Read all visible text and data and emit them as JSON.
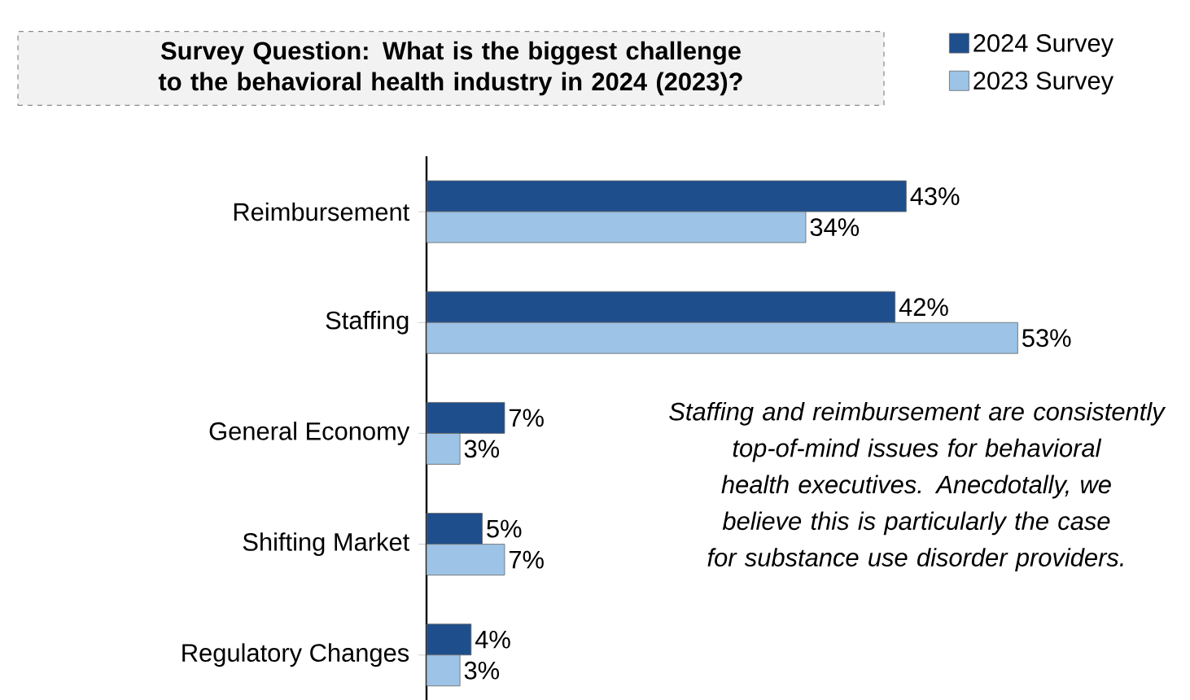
{
  "chart_data": {
    "type": "bar",
    "orientation": "horizontal",
    "title": "Survey Question: What is the biggest challenge to the behavioral health industry in 2024 (2023)?",
    "categories": [
      "Reimbursement",
      "Staffing",
      "General Economy",
      "Shifting Market",
      "Regulatory  Changes"
    ],
    "series": [
      {
        "name": "2024 Survey",
        "color": "#1f4e8c",
        "values": [
          43,
          42,
          7,
          5,
          4
        ],
        "value_labels": [
          "43%",
          "42%",
          "7%",
          "5%",
          "4%"
        ]
      },
      {
        "name": "2023 Survey",
        "color": "#9dc3e6",
        "values": [
          34,
          53,
          3,
          7,
          3
        ],
        "value_labels": [
          "34%",
          "53%",
          "3%",
          "7%",
          "3%"
        ]
      }
    ],
    "legend": "top right",
    "annotations": [
      "Staffing and reimbursement are consistently top-of-mind issues for behavioral health executives. Anecdotally, we believe this is particularly the case for substance use disorder providers."
    ]
  }
}
